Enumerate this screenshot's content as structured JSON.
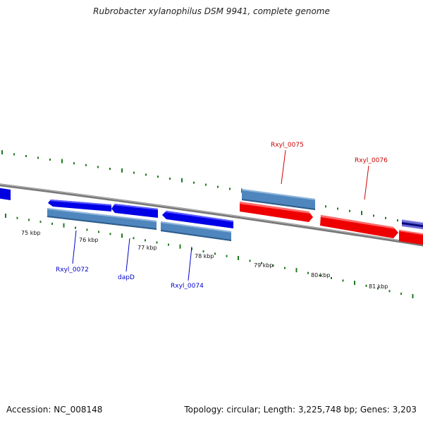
{
  "title": "Rubrobacter xylanophilus DSM 9941, complete genome",
  "footer": {
    "accession": "Accession: NC_008148",
    "summary": "Topology: circular; Length: 3,225,748 bp; Genes: 3,203"
  },
  "colors": {
    "forward_gene": "#ff0000",
    "reverse_gene": "#0000ff",
    "cds_feature": "#4f86bd",
    "forward_label": "#cc0000",
    "reverse_label": "#0000cc",
    "backbone": "#888888",
    "ticks": "#1e7a1e"
  },
  "scale_labels": [
    {
      "name": "75 kbp"
    },
    {
      "name": "76 kbp"
    },
    {
      "name": "77 kbp"
    },
    {
      "name": "78 kbp"
    },
    {
      "name": "79 kbp"
    },
    {
      "name": "80 kbp"
    },
    {
      "name": "81 kbp"
    }
  ],
  "genes": [
    {
      "name": "Rxyl_0072",
      "strand": "reverse"
    },
    {
      "name": "dapD",
      "strand": "reverse"
    },
    {
      "name": "Rxyl_0074",
      "strand": "reverse"
    },
    {
      "name": "Rxyl_0075",
      "strand": "forward"
    },
    {
      "name": "Rxyl_0076",
      "strand": "forward"
    }
  ]
}
